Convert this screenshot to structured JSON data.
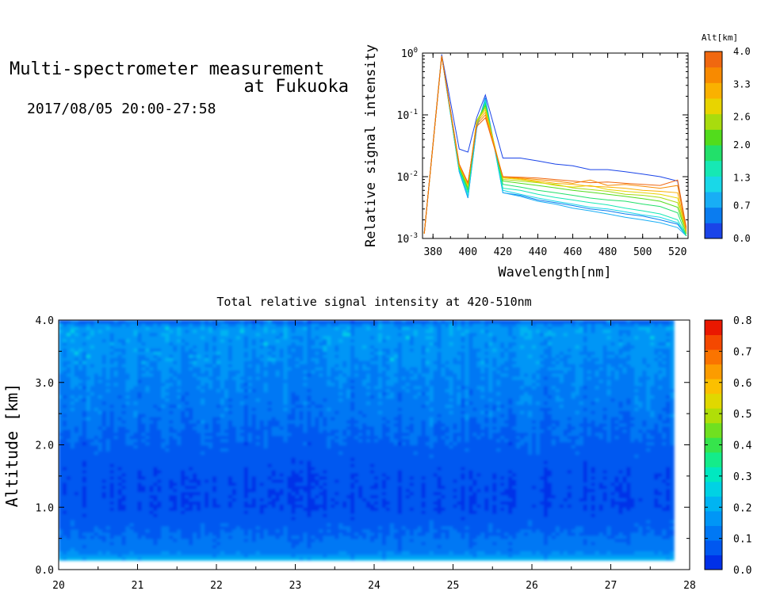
{
  "header": {
    "title_line1": "Multi-spectrometer measurement",
    "title_line2": "at Fukuoka",
    "date": "2017/08/05 20:00-27:58"
  },
  "chart_data": [
    {
      "type": "line",
      "title": "",
      "xlabel": "Wavelength[nm]",
      "ylabel": "Relative signal intensity",
      "xlim": [
        374,
        526
      ],
      "ylim": [
        0.001,
        1
      ],
      "yscale": "log",
      "x": [
        375,
        385,
        395,
        400,
        405,
        410,
        420,
        430,
        440,
        450,
        460,
        470,
        480,
        490,
        500,
        510,
        520,
        525
      ],
      "x_ticks": [
        "380",
        "400",
        "420",
        "440",
        "460",
        "480",
        "500",
        "520"
      ],
      "y_ticks": [
        "10^-3",
        "10^-2",
        "10^-1",
        "10^0"
      ],
      "colorbar": {
        "label": "Alt[km]",
        "range": [
          0,
          4
        ],
        "ticks": [
          "0.0",
          "0.7",
          "1.3",
          "2.0",
          "2.6",
          "3.3",
          "4.0"
        ],
        "colors": [
          "#1a44e8",
          "#0a7cf0",
          "#18aef5",
          "#19d8e8",
          "#16e8b4",
          "#22e06a",
          "#52dc1c",
          "#a8dc0e",
          "#e8d400",
          "#fab100",
          "#f88a00",
          "#f06810"
        ]
      },
      "series": [
        {
          "color": "#1a44e8",
          "values": [
            0.0012,
            0.95,
            0.028,
            0.025,
            0.09,
            0.21,
            0.02,
            0.02,
            0.018,
            0.016,
            0.015,
            0.013,
            0.013,
            0.012,
            0.011,
            0.01,
            0.0085,
            0.0012
          ]
        },
        {
          "color": "#0a7cf0",
          "values": [
            0.0012,
            0.9,
            0.012,
            0.0045,
            0.06,
            0.19,
            0.0055,
            0.005,
            0.0042,
            0.0038,
            0.0034,
            0.003,
            0.0028,
            0.0025,
            0.0023,
            0.002,
            0.0017,
            0.0011
          ]
        },
        {
          "color": "#18aef5",
          "values": [
            0.0012,
            0.9,
            0.012,
            0.0046,
            0.06,
            0.18,
            0.0055,
            0.0048,
            0.004,
            0.0036,
            0.0031,
            0.0028,
            0.0025,
            0.0022,
            0.002,
            0.0018,
            0.0015,
            0.0011
          ]
        },
        {
          "color": "#19d8e8",
          "values": [
            0.0012,
            0.9,
            0.013,
            0.005,
            0.065,
            0.17,
            0.006,
            0.0052,
            0.0045,
            0.004,
            0.0036,
            0.0032,
            0.003,
            0.0027,
            0.0024,
            0.0022,
            0.0018,
            0.0011
          ]
        },
        {
          "color": "#16e8b4",
          "values": [
            0.0012,
            0.9,
            0.013,
            0.0055,
            0.07,
            0.16,
            0.0065,
            0.006,
            0.0052,
            0.0046,
            0.0042,
            0.0038,
            0.0035,
            0.0031,
            0.0028,
            0.0025,
            0.002,
            0.0011
          ]
        },
        {
          "color": "#22e06a",
          "values": [
            0.0012,
            0.9,
            0.014,
            0.006,
            0.075,
            0.15,
            0.0075,
            0.0068,
            0.006,
            0.0055,
            0.005,
            0.0045,
            0.0042,
            0.004,
            0.0036,
            0.0033,
            0.0026,
            0.0011
          ]
        },
        {
          "color": "#52dc1c",
          "values": [
            0.0012,
            0.9,
            0.014,
            0.0065,
            0.08,
            0.14,
            0.0085,
            0.0078,
            0.0072,
            0.0066,
            0.006,
            0.0056,
            0.0052,
            0.0048,
            0.0044,
            0.004,
            0.0032,
            0.0012
          ]
        },
        {
          "color": "#a8dc0e",
          "values": [
            0.0012,
            0.9,
            0.015,
            0.007,
            0.08,
            0.13,
            0.009,
            0.0085,
            0.008,
            0.0075,
            0.0066,
            0.0062,
            0.0058,
            0.0052,
            0.005,
            0.0046,
            0.0038,
            0.0012
          ]
        },
        {
          "color": "#e8d400",
          "values": [
            0.0012,
            0.9,
            0.015,
            0.0072,
            0.08,
            0.12,
            0.0095,
            0.009,
            0.0082,
            0.0072,
            0.0068,
            0.0072,
            0.0062,
            0.0058,
            0.0055,
            0.0052,
            0.0045,
            0.0013
          ]
        },
        {
          "color": "#fab100",
          "values": [
            0.0012,
            0.9,
            0.015,
            0.0075,
            0.075,
            0.11,
            0.0098,
            0.0092,
            0.0085,
            0.0078,
            0.0075,
            0.007,
            0.0068,
            0.0065,
            0.006,
            0.0058,
            0.0055,
            0.0013
          ]
        },
        {
          "color": "#f88a00",
          "values": [
            0.0012,
            0.9,
            0.016,
            0.0078,
            0.07,
            0.1,
            0.01,
            0.0095,
            0.009,
            0.0085,
            0.0078,
            0.0088,
            0.0072,
            0.0075,
            0.007,
            0.0065,
            0.0072,
            0.0014
          ]
        },
        {
          "color": "#f06810",
          "values": [
            0.0012,
            0.9,
            0.016,
            0.008,
            0.065,
            0.09,
            0.01,
            0.0098,
            0.0095,
            0.009,
            0.0085,
            0.008,
            0.0082,
            0.0078,
            0.0075,
            0.0072,
            0.0088,
            0.0015
          ]
        }
      ]
    },
    {
      "type": "heatmap",
      "title": "Total relative signal intensity at 420-510nm",
      "xlabel": "",
      "ylabel": "Altitude [km]",
      "xlim": [
        20,
        28
      ],
      "ylim": [
        0,
        4
      ],
      "x_ticks": [
        "20",
        "21",
        "22",
        "23",
        "24",
        "25",
        "26",
        "27",
        "28"
      ],
      "y_ticks": [
        "0.0",
        "1.0",
        "2.0",
        "3.0",
        "4.0"
      ],
      "data_extent_x": [
        20,
        27.8
      ],
      "data_extent_y": [
        0.15,
        4.0
      ],
      "colorbar": {
        "range": [
          0,
          0.8
        ],
        "ticks": [
          "0.0",
          "0.1",
          "0.2",
          "0.3",
          "0.4",
          "0.5",
          "0.6",
          "0.7",
          "0.8"
        ],
        "colors": [
          "#0030e8",
          "#0058f0",
          "#0078f4",
          "#0096f6",
          "#00b4f2",
          "#00d2e4",
          "#00e8c0",
          "#14ec8a",
          "#36e44c",
          "#70e020",
          "#b0de08",
          "#e0d800",
          "#fbc000",
          "#fc9c00",
          "#fa7400",
          "#f44800",
          "#ea1800"
        ]
      },
      "altitude_profile": [
        {
          "alt": 0.15,
          "value": 0.24
        },
        {
          "alt": 0.2,
          "value": 0.17
        },
        {
          "alt": 0.3,
          "value": 0.12
        },
        {
          "alt": 0.5,
          "value": 0.1
        },
        {
          "alt": 1.0,
          "value": 0.05
        },
        {
          "alt": 1.5,
          "value": 0.055
        },
        {
          "alt": 2.0,
          "value": 0.08
        },
        {
          "alt": 2.5,
          "value": 0.11
        },
        {
          "alt": 3.0,
          "value": 0.13
        },
        {
          "alt": 3.5,
          "value": 0.15
        },
        {
          "alt": 3.9,
          "value": 0.17
        },
        {
          "alt": 4.0,
          "value": 0.05
        }
      ]
    }
  ]
}
